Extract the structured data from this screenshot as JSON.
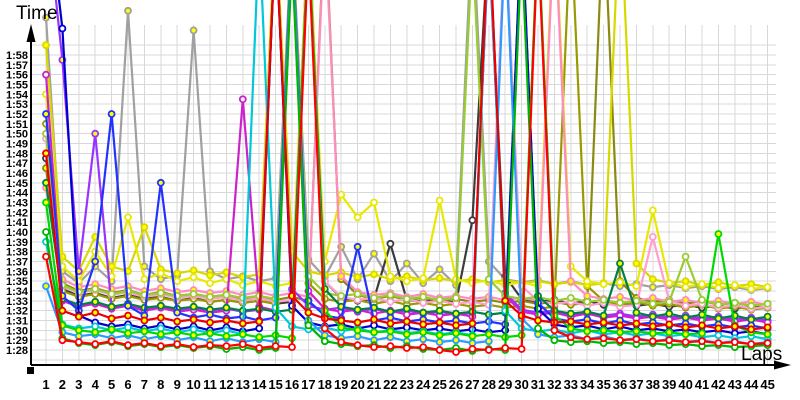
{
  "chart": {
    "title": "Time",
    "xlabel": "Laps"
  },
  "colors": {
    "background": "#ffffff",
    "grid": "#d8d8d8",
    "axis": "#000000",
    "marker_fill_yellow": "#ffff00",
    "marker_fill_white": "#ffffff"
  },
  "chart_data": {
    "type": "line",
    "ylabel": "Time",
    "xlabel": "Laps",
    "grid": true,
    "legend": "none",
    "x": [
      1,
      2,
      3,
      4,
      5,
      6,
      7,
      8,
      9,
      10,
      11,
      12,
      13,
      14,
      15,
      16,
      17,
      18,
      19,
      20,
      21,
      22,
      23,
      24,
      25,
      26,
      27,
      28,
      29,
      30,
      31,
      32,
      33,
      34,
      35,
      36,
      37,
      38,
      39,
      40,
      41,
      42,
      43,
      44,
      45
    ],
    "y_ticks": [
      "1:28",
      "1:29",
      "1:30",
      "1:31",
      "1:32",
      "1:33",
      "1:34",
      "1:35",
      "1:36",
      "1:37",
      "1:38",
      "1:39",
      "1:40",
      "1:41",
      "1:42",
      "1:43",
      "1:44",
      "1:45",
      "1:46",
      "1:47",
      "1:48",
      "1:49",
      "1:50",
      "1:51",
      "1:52",
      "1:53",
      "1:54",
      "1:55",
      "1:56",
      "1:57",
      "1:58"
    ],
    "y_axis_seconds": {
      "min": 88,
      "max": 118,
      "values_unit": "seconds; spikes above 124s run off the top (pit stops)"
    },
    "series": [
      {
        "name": "gray",
        "color": "#a0a0a0",
        "marker": "yellow",
        "values": [
          121.8,
          96.0,
          94.8,
          96.5,
          95.0,
          122.5,
          96.5,
          95.2,
          95.6,
          120.5,
          96.0,
          95.2,
          95.5,
          95.0,
          95.3,
          131.0,
          97.2,
          95.4,
          98.5,
          95.2,
          97.8,
          95.0,
          96.8,
          94.8,
          96.2,
          94.6,
          132.0,
          97.0,
          95.2,
          94.9,
          95.1,
          94.7,
          95.0,
          94.6,
          94.8,
          94.5,
          94.7,
          94.4,
          94.6,
          94.3,
          94.5,
          94.2,
          94.4,
          94.1,
          94.3
        ]
      },
      {
        "name": "dark-gray",
        "color": "#3c3c3c",
        "marker": "white",
        "values": [
          107.5,
          94.2,
          93.5,
          93.8,
          93.3,
          93.6,
          93.2,
          93.4,
          93.0,
          93.3,
          92.9,
          93.1,
          92.8,
          93.0,
          92.7,
          92.9,
          131.5,
          95.0,
          93.3,
          93.0,
          93.2,
          98.8,
          93.1,
          92.9,
          93.1,
          92.8,
          101.2,
          130.5,
          95.5,
          93.2,
          92.9,
          93.1,
          92.7,
          93.0,
          92.6,
          92.8,
          92.5,
          92.7,
          92.4,
          92.6,
          92.3,
          92.5,
          92.2,
          92.4,
          92.3
        ]
      },
      {
        "name": "olive-a",
        "color": "#999900",
        "marker": "white",
        "values": [
          111.0,
          94.0,
          93.4,
          93.7,
          93.2,
          93.5,
          93.1,
          93.3,
          93.0,
          93.2,
          92.9,
          93.1,
          92.8,
          93.0,
          92.7,
          130.5,
          94.8,
          93.2,
          92.9,
          93.1,
          92.7,
          93.0,
          92.6,
          92.8,
          92.5,
          92.7,
          92.4,
          92.6,
          92.3,
          92.5,
          92.2,
          92.4,
          131.5,
          94.5,
          93.0,
          92.6,
          92.9,
          92.5,
          92.7,
          92.3,
          92.6,
          92.2,
          92.4,
          92.1,
          92.3
        ]
      },
      {
        "name": "olive-b",
        "color": "#8a8a10",
        "marker": "yellow",
        "values": [
          106.5,
          94.8,
          94.0,
          94.3,
          93.8,
          94.1,
          93.6,
          93.9,
          93.5,
          93.7,
          93.4,
          93.6,
          93.2,
          93.5,
          93.1,
          93.4,
          93.0,
          132.5,
          95.2,
          93.6,
          93.2,
          93.5,
          93.1,
          93.3,
          93.0,
          93.2,
          92.9,
          93.1,
          92.8,
          93.0,
          92.7,
          92.9,
          92.6,
          92.8,
          133.0,
          95.0,
          93.3,
          92.9,
          93.1,
          92.7,
          93.0,
          92.6,
          92.8,
          92.5,
          92.7
        ]
      },
      {
        "name": "yellow-b",
        "color": "#d8d800",
        "marker": "yellow",
        "values": [
          119.0,
          97.5,
          96.0,
          99.5,
          96.5,
          96.0,
          100.5,
          96.2,
          95.8,
          96.1,
          95.6,
          95.9,
          95.4,
          95.7,
          132.0,
          98.0,
          96.0,
          95.6,
          95.9,
          95.4,
          95.7,
          95.2,
          95.5,
          95.1,
          95.3,
          95.0,
          95.2,
          94.9,
          95.1,
          94.8,
          95.0,
          94.7,
          94.9,
          94.6,
          94.8,
          134.0,
          96.8,
          95.2,
          94.8,
          95.0,
          94.6,
          94.9,
          94.5,
          94.7,
          94.4
        ]
      },
      {
        "name": "yellow-a",
        "color": "#e8e800",
        "marker": "white",
        "values": [
          114.0,
          96.5,
          95.0,
          98.0,
          95.5,
          101.5,
          95.2,
          95.8,
          95.0,
          95.4,
          94.8,
          95.2,
          94.6,
          95.0,
          94.5,
          94.8,
          131.0,
          97.0,
          103.8,
          101.5,
          103.0,
          95.5,
          95.0,
          95.3,
          103.2,
          95.2,
          94.8,
          95.1,
          94.6,
          94.9,
          94.5,
          133.0,
          96.5,
          95.0,
          94.7,
          94.9,
          94.5,
          102.2,
          94.8,
          94.4,
          94.7,
          94.3,
          94.6,
          94.2,
          94.4
        ]
      },
      {
        "name": "pink-b",
        "color": "#ff8cc0",
        "marker": "yellow",
        "values": [
          104.5,
          95.2,
          94.4,
          94.7,
          94.2,
          94.5,
          94.0,
          94.3,
          93.9,
          94.1,
          93.8,
          94.0,
          93.6,
          93.9,
          93.5,
          93.8,
          93.4,
          131.5,
          95.5,
          93.9,
          93.6,
          93.8,
          93.4,
          93.7,
          93.3,
          93.5,
          93.2,
          93.4,
          93.1,
          93.3,
          93.0,
          132.0,
          95.0,
          93.5,
          93.2,
          93.4,
          93.0,
          93.3,
          92.9,
          93.1,
          92.8,
          93.0,
          92.7,
          92.9,
          92.6
        ]
      },
      {
        "name": "pink-a",
        "color": "#ff9fd0",
        "marker": "white",
        "values": [
          109.5,
          94.5,
          93.8,
          94.1,
          93.6,
          93.9,
          93.4,
          93.7,
          93.3,
          93.5,
          93.2,
          93.4,
          93.0,
          93.3,
          92.9,
          93.1,
          130.0,
          95.0,
          93.4,
          93.1,
          93.3,
          92.9,
          93.2,
          92.8,
          93.0,
          92.7,
          92.9,
          92.6,
          131.0,
          94.5,
          93.0,
          92.7,
          92.9,
          92.5,
          92.8,
          92.4,
          92.6,
          99.5,
          93.0,
          92.5,
          92.7,
          92.3,
          92.6,
          92.2,
          92.4
        ]
      },
      {
        "name": "violet",
        "color": "#9933ff",
        "marker": "yellow",
        "values": [
          133.0,
          117.5,
          96.0,
          110.0,
          92.4,
          92.6,
          92.2,
          92.5,
          92.1,
          92.3,
          92.0,
          92.2,
          91.9,
          92.1,
          130.5,
          94.2,
          92.5,
          92.1,
          92.3,
          91.9,
          92.2,
          91.8,
          92.0,
          91.7,
          91.9,
          91.6,
          91.8,
          129.5,
          93.8,
          92.1,
          91.8,
          92.0,
          91.6,
          91.9,
          91.5,
          91.7,
          91.4,
          91.6,
          91.3,
          91.5,
          91.2,
          91.4,
          91.1,
          91.3,
          91.0
        ]
      },
      {
        "name": "magenta",
        "color": "#cc22cc",
        "marker": "white",
        "values": [
          116.0,
          93.0,
          92.4,
          92.7,
          92.2,
          92.5,
          92.0,
          92.3,
          91.9,
          92.1,
          91.8,
          92.0,
          113.5,
          92.4,
          92.0,
          129.0,
          94.0,
          92.2,
          91.9,
          92.1,
          91.7,
          92.0,
          91.6,
          91.8,
          91.5,
          91.7,
          91.4,
          130.0,
          93.5,
          91.9,
          91.6,
          91.8,
          91.4,
          91.7,
          91.3,
          91.5,
          91.2,
          91.4,
          91.1,
          91.3,
          91.0,
          91.2,
          90.9,
          91.1,
          90.8
        ]
      },
      {
        "name": "light-green",
        "color": "#99cc33",
        "marker": "white",
        "values": [
          110.0,
          94.6,
          93.9,
          94.2,
          93.7,
          94.0,
          93.6,
          93.8,
          93.5,
          93.7,
          93.4,
          93.6,
          93.3,
          93.5,
          93.2,
          130.2,
          95.5,
          93.8,
          93.5,
          93.7,
          93.3,
          93.6,
          93.2,
          93.4,
          93.1,
          93.3,
          129.2,
          95.2,
          93.5,
          93.2,
          93.4,
          93.0,
          93.3,
          92.9,
          93.1,
          92.8,
          93.0,
          92.7,
          92.9,
          97.5,
          93.1,
          92.6,
          92.8,
          92.5,
          92.7
        ]
      },
      {
        "name": "dark-green",
        "color": "#008044",
        "marker": "yellow",
        "values": [
          105.0,
          93.2,
          92.6,
          92.9,
          92.4,
          92.7,
          92.3,
          92.5,
          92.2,
          92.4,
          92.1,
          92.3,
          92.0,
          92.2,
          91.9,
          92.1,
          129.8,
          94.2,
          92.4,
          92.1,
          92.3,
          91.9,
          92.2,
          91.8,
          92.0,
          91.7,
          91.9,
          91.6,
          91.8,
          130.8,
          93.5,
          92.0,
          91.7,
          91.9,
          91.5,
          96.8,
          91.8,
          91.4,
          91.7,
          91.3,
          91.6,
          91.2,
          91.5,
          91.1,
          91.4
        ]
      },
      {
        "name": "blue-b",
        "color": "#2233ff",
        "marker": "yellow",
        "values": [
          112.0,
          93.5,
          92.0,
          97.0,
          112.0,
          92.5,
          91.5,
          105.0,
          91.8,
          91.3,
          91.6,
          91.2,
          91.4,
          91.0,
          91.3,
          130.0,
          93.0,
          91.5,
          91.2,
          98.5,
          91.0,
          91.3,
          90.9,
          91.1,
          90.8,
          91.0,
          90.7,
          90.9,
          90.6,
          131.0,
          92.8,
          91.2,
          90.9,
          91.1,
          90.7,
          91.0,
          90.6,
          90.8,
          90.5,
          90.7,
          90.4,
          90.6,
          90.3,
          90.5,
          90.2
        ]
      },
      {
        "name": "blue-a",
        "color": "#0000cc",
        "marker": "white",
        "values": [
          135.0,
          120.7,
          91.5,
          90.8,
          90.4,
          90.6,
          90.2,
          90.5,
          90.1,
          90.4,
          90.0,
          90.3,
          89.9,
          90.2,
          131.0,
          92.5,
          90.8,
          90.4,
          90.6,
          90.2,
          90.5,
          90.1,
          90.3,
          90.0,
          90.2,
          89.9,
          90.1,
          89.8,
          90.0,
          132.0,
          92.2,
          90.6,
          90.3,
          90.5,
          90.1,
          90.4,
          90.0,
          90.2,
          89.9,
          90.1,
          89.8,
          90.0,
          89.7,
          89.9,
          89.6
        ]
      },
      {
        "name": "cyan",
        "color": "#00c8d8",
        "marker": "white",
        "values": [
          99.0,
          90.6,
          90.2,
          90.4,
          90.0,
          90.3,
          89.9,
          90.2,
          89.8,
          90.1,
          89.7,
          90.0,
          89.6,
          130.5,
          92.3,
          90.4,
          90.1,
          90.3,
          89.9,
          90.2,
          89.8,
          90.0,
          89.7,
          89.9,
          89.6,
          89.8,
          89.5,
          131.0,
          92.0,
          90.2,
          89.9,
          90.1,
          89.7,
          90.0,
          89.6,
          89.8,
          89.5,
          89.7,
          89.4,
          89.6,
          89.3,
          89.5,
          89.2,
          89.4,
          89.1
        ]
      },
      {
        "name": "sky-blue",
        "color": "#2b9bff",
        "marker": "yellow",
        "values": [
          94.5,
          89.8,
          89.4,
          89.6,
          89.2,
          89.5,
          89.1,
          89.4,
          89.0,
          89.3,
          88.9,
          89.2,
          88.8,
          89.1,
          88.8,
          129.5,
          91.0,
          89.5,
          89.2,
          89.4,
          89.0,
          89.3,
          88.9,
          89.1,
          88.8,
          89.0,
          88.7,
          88.9,
          130.0,
          91.2,
          89.6,
          89.3,
          89.5,
          89.1,
          89.4,
          89.0,
          89.2,
          88.9,
          89.1,
          88.8,
          89.0,
          88.7,
          88.9,
          88.6,
          88.8
        ]
      },
      {
        "name": "green-b",
        "color": "#00d800",
        "marker": "yellow",
        "values": [
          103.0,
          90.5,
          90.0,
          89.8,
          90.1,
          89.7,
          89.9,
          89.6,
          89.8,
          89.5,
          89.7,
          89.4,
          89.6,
          89.3,
          89.5,
          89.2,
          130.0,
          92.0,
          90.3,
          90.0,
          89.8,
          89.9,
          89.6,
          89.8,
          89.5,
          89.7,
          89.4,
          89.6,
          89.3,
          89.5,
          131.0,
          91.5,
          90.2,
          89.9,
          90.0,
          89.8,
          89.9,
          89.7,
          89.8,
          89.6,
          89.7,
          99.8,
          90.5,
          89.8,
          89.6
        ]
      },
      {
        "name": "green-a",
        "color": "#00b400",
        "marker": "white",
        "values": [
          100.0,
          89.2,
          88.7,
          88.5,
          88.8,
          88.4,
          88.6,
          88.3,
          88.5,
          88.2,
          88.4,
          88.1,
          88.3,
          88.0,
          88.2,
          128.0,
          90.5,
          88.9,
          88.6,
          88.4,
          88.5,
          88.2,
          88.4,
          88.1,
          88.0,
          88.2,
          87.9,
          88.1,
          88.0,
          129.0,
          90.2,
          89.0,
          88.8,
          88.9,
          88.7,
          88.8,
          88.6,
          88.7,
          88.5,
          88.6,
          88.4,
          88.5,
          88.3,
          88.4,
          88.5
        ]
      },
      {
        "name": "red-b",
        "color": "#e80000",
        "marker": "yellow",
        "values": [
          108.0,
          92.0,
          91.4,
          91.8,
          91.2,
          91.5,
          91.0,
          91.3,
          90.9,
          91.1,
          90.8,
          91.0,
          90.7,
          90.9,
          131.0,
          93.5,
          91.8,
          91.2,
          91.0,
          90.8,
          91.1,
          90.7,
          90.9,
          90.6,
          90.8,
          90.5,
          90.7,
          132.0,
          93.0,
          91.5,
          91.0,
          90.8,
          90.9,
          90.6,
          90.8,
          90.5,
          90.7,
          90.4,
          90.6,
          90.3,
          90.5,
          90.2,
          90.4,
          90.1,
          90.3
        ]
      },
      {
        "name": "red-a",
        "color": "#ff0000",
        "marker": "white",
        "values": [
          97.5,
          89.0,
          88.8,
          88.6,
          88.9,
          88.5,
          88.7,
          88.4,
          88.6,
          88.3,
          88.5,
          88.4,
          88.6,
          88.2,
          88.4,
          88.3,
          129.0,
          90.2,
          88.8,
          88.5,
          88.3,
          88.4,
          88.2,
          88.3,
          88.0,
          87.8,
          88.1,
          88.0,
          88.2,
          88.1,
          130.0,
          90.0,
          89.3,
          89.1,
          89.2,
          89.0,
          89.1,
          88.9,
          89.0,
          88.8,
          88.9,
          88.7,
          88.8,
          88.6,
          88.7
        ]
      }
    ]
  }
}
